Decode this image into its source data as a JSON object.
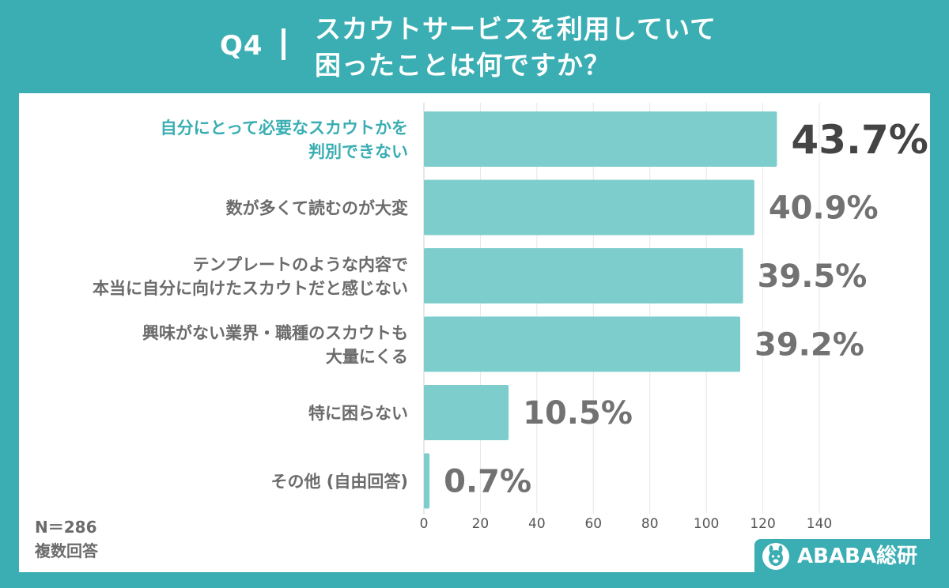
{
  "header": {
    "question_label": "Q4",
    "title_lines": [
      "スカウトサービスを利用していて",
      "困ったことは何ですか？"
    ]
  },
  "footnote": {
    "sample": "N＝286",
    "note": "複数回答"
  },
  "brand": {
    "name": "ABABA総研",
    "logo_icon": "alpaca-logo-icon"
  },
  "colors": {
    "background": "#3aaeb3",
    "bar": "#7ecdcd",
    "highlight_label": "#3aaeb3",
    "text": "#6b6b6b",
    "value_text": "#727272",
    "top_value_text": "#444444"
  },
  "chart_data": {
    "type": "bar",
    "orientation": "horizontal",
    "categories": [
      "自分にとって必要なスカウトかを\n判別できない",
      "数が多くて読むのが大変",
      "テンプレートのような内容で\n本当に自分に向けたスカウトだと感じない",
      "興味がない業界・職種のスカウトも\n大量にくる",
      "特に困らない",
      "その他 (自由回答)"
    ],
    "series": [
      {
        "values": [
          125,
          117,
          113,
          112,
          30,
          2
        ]
      }
    ],
    "value_labels": [
      "43.7%",
      "40.9%",
      "39.5%",
      "39.2%",
      "10.5%",
      "0.7%"
    ],
    "xlim": [
      0,
      140
    ],
    "xticks": [
      0,
      20,
      40,
      60,
      80,
      100,
      120,
      140
    ],
    "grid": true,
    "highlight_index": 0,
    "xlabel": "",
    "ylabel": ""
  }
}
